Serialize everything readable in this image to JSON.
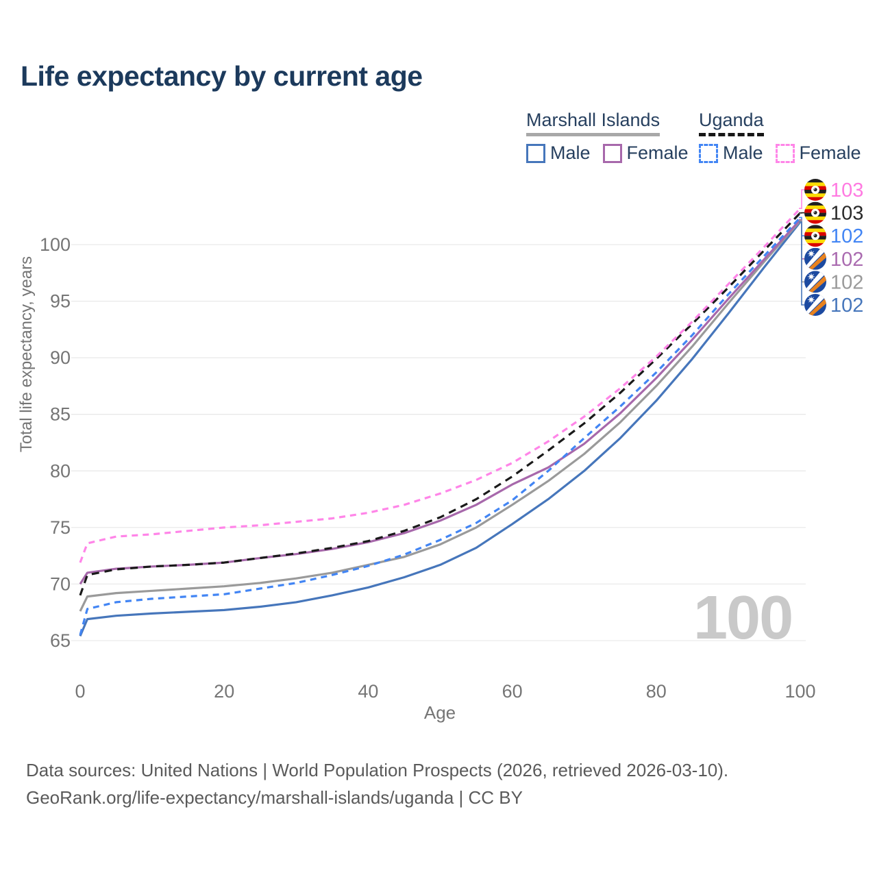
{
  "title": "Life expectancy by current age",
  "legend": {
    "groups": [
      {
        "label": "Marshall Islands",
        "underline": "solid",
        "underline_color": "#a8a8a8",
        "items": [
          {
            "label": "Male",
            "color": "#4676bb",
            "dashed": false
          },
          {
            "label": "Female",
            "color": "#a768ab",
            "dashed": false
          }
        ]
      },
      {
        "label": "Uganda",
        "underline": "dashed",
        "underline_color": "#161616",
        "items": [
          {
            "label": "Male",
            "color": "#4285f4",
            "dashed": true
          },
          {
            "label": "Female",
            "color": "#ff85e8",
            "dashed": true
          }
        ]
      }
    ]
  },
  "chart_data": {
    "type": "line",
    "title": "Life expectancy by current age",
    "xlabel": "Age",
    "ylabel": "Total life expectancy, years",
    "x_ticks": [
      0,
      20,
      40,
      60,
      80,
      100
    ],
    "y_ticks": [
      65,
      70,
      75,
      80,
      85,
      90,
      95,
      100
    ],
    "xlim": [
      0,
      100
    ],
    "ylim": [
      64,
      104
    ],
    "grid": "horizontal",
    "legend_position": "top-right",
    "watermark": "100",
    "style": {
      "grid_color": "#e9e9e9",
      "axis_text_color": "#757575",
      "title_color": "#1c3a5c",
      "footer_color": "#5a5a5a"
    },
    "x": [
      0,
      1,
      5,
      10,
      15,
      20,
      25,
      30,
      35,
      40,
      45,
      50,
      55,
      60,
      65,
      70,
      75,
      80,
      85,
      90,
      95,
      100
    ],
    "series": [
      {
        "name": "Marshall Islands Male",
        "country": "marshall-islands",
        "sex": "male",
        "color": "#4676bb",
        "dash": null,
        "end_label": "102",
        "label_color": "#4676bb",
        "values": [
          65.4,
          66.9,
          67.2,
          67.4,
          67.55,
          67.7,
          68.0,
          68.4,
          69.0,
          69.7,
          70.6,
          71.7,
          73.2,
          75.3,
          77.5,
          80.0,
          82.9,
          86.2,
          89.9,
          93.9,
          98.0,
          102.0
        ]
      },
      {
        "name": "Marshall Islands (both sexes)",
        "country": "marshall-islands",
        "sex": "all",
        "color": "#9a9a9a",
        "dash": null,
        "end_label": "102",
        "label_color": "#9a9a9a",
        "values": [
          67.6,
          68.9,
          69.2,
          69.4,
          69.6,
          69.8,
          70.1,
          70.5,
          71.0,
          71.7,
          72.4,
          73.5,
          75.0,
          77.0,
          79.1,
          81.5,
          84.3,
          87.5,
          91.0,
          94.8,
          98.5,
          102.1
        ]
      },
      {
        "name": "Marshall Islands Female",
        "country": "marshall-islands",
        "sex": "female",
        "color": "#a768ab",
        "dash": null,
        "end_label": "102",
        "label_color": "#aa6bb0",
        "values": [
          70.0,
          71.0,
          71.35,
          71.55,
          71.7,
          71.9,
          72.3,
          72.65,
          73.1,
          73.7,
          74.5,
          75.6,
          77.0,
          78.8,
          80.3,
          82.4,
          85.1,
          88.2,
          91.6,
          95.2,
          98.7,
          102.2
        ]
      },
      {
        "name": "Uganda (both sexes)",
        "country": "uganda",
        "sex": "all",
        "color": "#1a1a1a",
        "dash": "11 8",
        "end_label": "103",
        "label_color": "#2a2a2a",
        "values": [
          69.0,
          70.8,
          71.3,
          71.55,
          71.7,
          71.9,
          72.3,
          72.7,
          73.2,
          73.8,
          74.7,
          75.9,
          77.5,
          79.5,
          81.8,
          84.2,
          86.9,
          89.9,
          93.0,
          96.2,
          99.5,
          102.8
        ]
      },
      {
        "name": "Uganda Male",
        "country": "uganda",
        "sex": "male",
        "color": "#4285f4",
        "dash": "9 7",
        "end_label": "102",
        "label_color": "#4285f4",
        "values": [
          65.5,
          67.8,
          68.4,
          68.7,
          68.9,
          69.1,
          69.6,
          70.1,
          70.8,
          71.6,
          72.6,
          73.9,
          75.4,
          77.4,
          80.0,
          82.9,
          85.7,
          88.7,
          92.0,
          95.6,
          99.0,
          102.4
        ]
      },
      {
        "name": "Uganda Female",
        "country": "uganda",
        "sex": "female",
        "color": "#ff85e8",
        "dash": "9 7",
        "end_label": "103",
        "label_color": "#ff7ae1",
        "values": [
          71.9,
          73.6,
          74.2,
          74.4,
          74.7,
          75.0,
          75.2,
          75.5,
          75.8,
          76.3,
          77.0,
          78.0,
          79.2,
          80.7,
          82.6,
          84.8,
          87.3,
          90.1,
          93.2,
          96.5,
          99.8,
          103.2
        ]
      }
    ]
  },
  "footer": {
    "line1": "Data sources: United Nations | World Population Prospects (2026, retrieved 2026-03-10).",
    "line2": "GeoRank.org/life-expectancy/marshall-islands/uganda | CC BY"
  }
}
